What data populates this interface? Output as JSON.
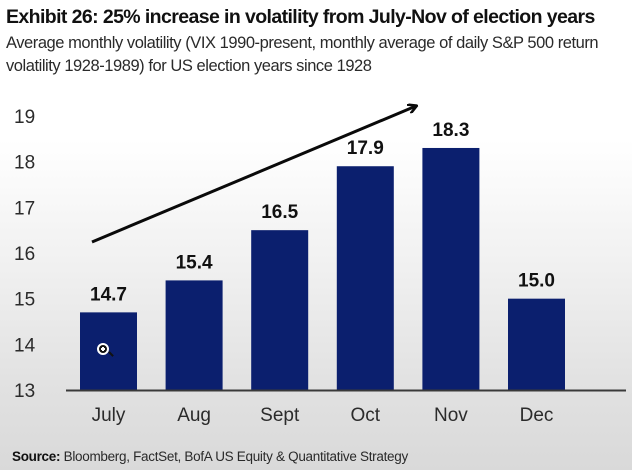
{
  "header": {
    "title": "Exhibit 26: 25% increase in volatility from July-Nov of election years",
    "subtitle": "Average monthly volatility (VIX 1990-present, monthly average of daily S&P 500 return volatility 1928-1989) for US election years since 1928"
  },
  "footer": {
    "source_label": "Source:",
    "source_text": "Bloomberg, FactSet, BofA US Equity & Quantitative Strategy"
  },
  "colors": {
    "bar": "#0b1f6e",
    "axis": "#3a3a3a",
    "arrow": "#0a0a0a"
  },
  "chart_data": {
    "type": "bar",
    "title": "Exhibit 26: 25% increase in volatility from July-Nov of election years",
    "subtitle": "Average monthly volatility (VIX 1990-present, monthly average of daily S&P 500 return volatility 1928-1989) for US election years since 1928",
    "xlabel": "",
    "ylabel": "",
    "categories": [
      "July",
      "Aug",
      "Sept",
      "Oct",
      "Nov",
      "Dec"
    ],
    "values": [
      14.7,
      15.4,
      16.5,
      17.9,
      18.3,
      15.0
    ],
    "data_labels": [
      "14.7",
      "15.4",
      "16.5",
      "17.9",
      "18.3",
      "15.0"
    ],
    "ylim": [
      13,
      19
    ],
    "yticks": [
      13,
      14,
      15,
      16,
      17,
      18,
      19
    ],
    "grid": false,
    "legend": "none",
    "annotations": [
      {
        "type": "arrow",
        "meaning": "upward trend from July to Nov",
        "from_category": "July",
        "to_category": "Nov"
      }
    ]
  }
}
